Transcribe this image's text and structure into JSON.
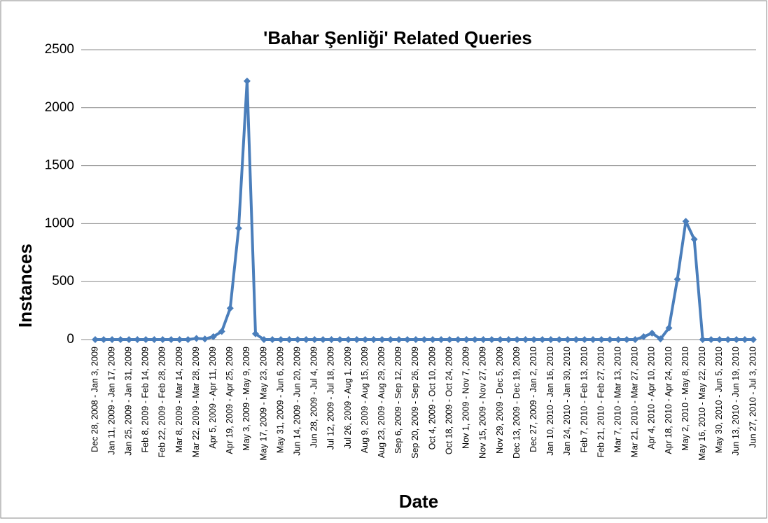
{
  "chart_data": {
    "type": "line",
    "title": "'Bahar Şenliği' Related Queries",
    "x_label": "Date",
    "y_label": "Instances",
    "categories": [
      "Dec 28, 2008 - Jan 3, 2009",
      null,
      "Jan 11, 2009 - Jan 17, 2009",
      null,
      "Jan 25, 2009 - Jan 31, 2009",
      null,
      "Feb 8, 2009 - Feb 14, 2009",
      null,
      "Feb 22, 2009 - Feb 28, 2009",
      null,
      "Mar 8, 2009 - Mar 14, 2009",
      null,
      "Mar 22, 2009 - Mar 28, 2009",
      null,
      "Apr 5, 2009 - Apr 11, 2009",
      null,
      "Apr 19, 2009 - Apr 25, 2009",
      null,
      "May 3, 2009 - May 9, 2009",
      null,
      "May 17, 2009 - May 23, 2009",
      null,
      "May 31, 2009 - Jun 6, 2009",
      null,
      "Jun 14, 2009 - Jun 20, 2009",
      null,
      "Jun 28, 2009 - Jul 4, 2009",
      null,
      "Jul 12, 2009 - Jul 18, 2009",
      null,
      "Jul 26, 2009 - Aug 1, 2009",
      null,
      "Aug 9, 2009 - Aug 15, 2009",
      null,
      "Aug 23, 2009 - Aug 29, 2009",
      null,
      "Sep 6, 2009 - Sep 12, 2009",
      null,
      "Sep 20, 2009 - Sep 26, 2009",
      null,
      "Oct 4, 2009 - Oct 10, 2009",
      null,
      "Oct 18, 2009 - Oct 24, 2009",
      null,
      "Nov 1, 2009 - Nov 7, 2009",
      null,
      "Nov 15, 2009 - Nov 27, 2009",
      null,
      "Nov 29, 2009 - Dec 5, 2009",
      null,
      "Dec 13, 2009 - Dec 19, 2009",
      null,
      "Dec 27, 2009 - Jan 2, 2010",
      null,
      "Jan 10, 2010 - Jan 16, 2010",
      null,
      "Jan 24, 2010 - Jan 30, 2010",
      null,
      "Feb 7, 2010 - Feb 13, 2010",
      null,
      "Feb 21, 2010 - Feb 27, 2010",
      null,
      "Mar 7, 2010 - Mar 13, 2010",
      null,
      "Mar 21, 2010 - Mar 27, 2010",
      null,
      "Apr 4, 2010 - Apr 10, 2010",
      null,
      "Apr 18, 2010 - Apr 24, 2010",
      null,
      "May 2, 2010 - May 8, 2010",
      null,
      "May 16, 2010 - May 22, 2010",
      null,
      "May 30, 2010 - Jun 5, 2010",
      null,
      "Jun 13, 2010 - Jun 19, 2010",
      null,
      "Jun 27, 2010 - Jul 3, 2010"
    ],
    "values": [
      0,
      0,
      0,
      0,
      0,
      0,
      0,
      0,
      0,
      0,
      0,
      0,
      10,
      5,
      25,
      70,
      270,
      960,
      2230,
      50,
      0,
      0,
      0,
      0,
      0,
      0,
      0,
      0,
      0,
      0,
      0,
      0,
      0,
      0,
      0,
      0,
      0,
      0,
      0,
      0,
      0,
      0,
      0,
      0,
      0,
      0,
      0,
      0,
      0,
      0,
      0,
      0,
      0,
      0,
      0,
      0,
      0,
      0,
      0,
      0,
      0,
      0,
      0,
      0,
      0,
      25,
      55,
      5,
      100,
      520,
      1020,
      865,
      0,
      0,
      0,
      0,
      0,
      0,
      0
    ],
    "color": "#4a7ebb",
    "ylim": [
      0,
      2500
    ],
    "yticks": [
      0,
      500,
      1000,
      1500,
      2000,
      2500
    ],
    "grid": true
  }
}
